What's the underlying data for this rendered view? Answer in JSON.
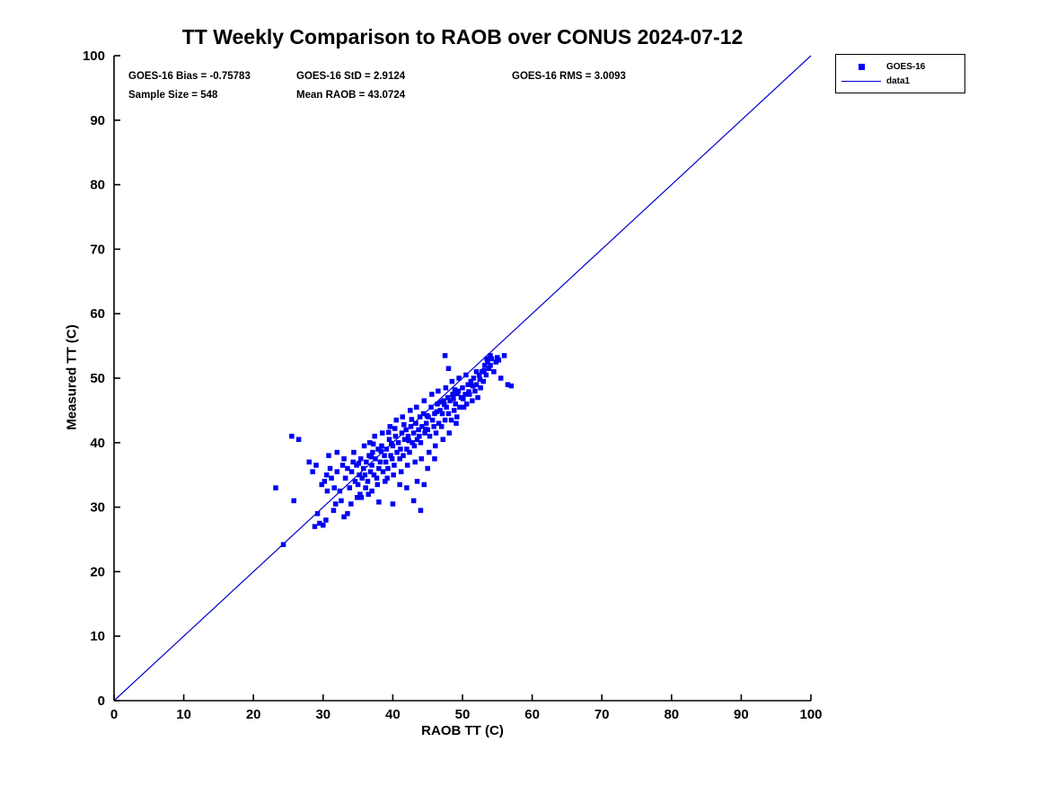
{
  "title": "TT Weekly Comparison to RAOB over CONUS 2024-07-12",
  "stats": {
    "bias": "GOES-16 Bias = -0.75783",
    "std": "GOES-16 StD = 2.9124",
    "rms": "GOES-16 RMS = 3.0093",
    "sample_size": "Sample Size = 548",
    "mean_raob": "Mean RAOB = 43.0724"
  },
  "legend": {
    "marker_item_label": "GOES-16",
    "line_item_label": "data1"
  },
  "colors": {
    "marker": "#0000f5",
    "reference_line": "#0000cc",
    "axis": "#000000",
    "text": "#000000",
    "background": "#ffffff"
  },
  "chart_data": {
    "type": "scatter",
    "title": "TT Weekly Comparison to RAOB over CONUS 2024-07-12",
    "xlabel": "RAOB TT (C)",
    "ylabel": "Measured TT (C)",
    "xlim": [
      0,
      100
    ],
    "ylim": [
      0,
      100
    ],
    "xticks": [
      0,
      10,
      20,
      30,
      40,
      50,
      60,
      70,
      80,
      90,
      100
    ],
    "yticks": [
      0,
      10,
      20,
      30,
      40,
      50,
      60,
      70,
      80,
      90,
      100
    ],
    "grid": false,
    "legend_position": "outside-top-right",
    "reference_line": {
      "name": "data1",
      "from": [
        0,
        0
      ],
      "to": [
        100,
        100
      ]
    },
    "annotations": [
      "GOES-16 Bias = -0.75783",
      "GOES-16 StD = 2.9124",
      "GOES-16 RMS = 3.0093",
      "Sample Size = 548",
      "Mean RAOB = 43.0724"
    ],
    "series": [
      {
        "name": "GOES-16",
        "marker": "square",
        "points": [
          [
            23.2,
            33.0
          ],
          [
            25.5,
            41.0
          ],
          [
            26.5,
            40.5
          ],
          [
            25.8,
            31.0
          ],
          [
            24.3,
            24.2
          ],
          [
            28.0,
            37.0
          ],
          [
            28.5,
            35.5
          ],
          [
            29.0,
            36.5
          ],
          [
            29.5,
            27.5
          ],
          [
            30.0,
            27.2
          ],
          [
            31.5,
            29.5
          ],
          [
            33.0,
            28.5
          ],
          [
            33.5,
            29.0
          ],
          [
            30.5,
            35.0
          ],
          [
            31.0,
            36.0
          ],
          [
            32.0,
            38.5
          ],
          [
            30.8,
            38.0
          ],
          [
            34.0,
            30.5
          ],
          [
            35.5,
            31.5
          ],
          [
            36.5,
            32.0
          ],
          [
            37.0,
            32.5
          ],
          [
            38.0,
            30.8
          ],
          [
            40.0,
            30.5
          ],
          [
            41.0,
            33.5
          ],
          [
            42.0,
            33.0
          ],
          [
            43.0,
            31.0
          ],
          [
            43.5,
            34.0
          ],
          [
            44.0,
            29.5
          ],
          [
            44.5,
            33.5
          ],
          [
            45.0,
            36.0
          ],
          [
            46.0,
            37.5
          ],
          [
            47.5,
            53.5
          ],
          [
            48.0,
            51.5
          ],
          [
            53.5,
            53.0
          ],
          [
            54.0,
            53.5
          ],
          [
            55.0,
            53.2
          ],
          [
            56.0,
            53.5
          ],
          [
            56.5,
            49.0
          ],
          [
            57.0,
            48.8
          ],
          [
            55.5,
            50.0
          ],
          [
            52.0,
            51.0
          ],
          [
            33.2,
            34.5
          ],
          [
            33.5,
            36.0
          ],
          [
            33.8,
            33.0
          ],
          [
            34.1,
            35.5
          ],
          [
            34.3,
            37.0
          ],
          [
            34.6,
            34.0
          ],
          [
            34.8,
            36.5
          ],
          [
            35.0,
            33.5
          ],
          [
            35.2,
            35.0
          ],
          [
            35.4,
            37.5
          ],
          [
            35.6,
            34.5
          ],
          [
            35.8,
            36.0
          ],
          [
            36.0,
            35.0
          ],
          [
            36.2,
            37.0
          ],
          [
            36.4,
            34.0
          ],
          [
            36.6,
            38.0
          ],
          [
            36.8,
            35.5
          ],
          [
            37.0,
            36.5
          ],
          [
            37.1,
            38.5
          ],
          [
            37.3,
            35.0
          ],
          [
            37.5,
            37.5
          ],
          [
            37.7,
            34.5
          ],
          [
            37.9,
            39.0
          ],
          [
            38.0,
            36.0
          ],
          [
            38.2,
            37.0
          ],
          [
            38.4,
            39.5
          ],
          [
            38.6,
            35.5
          ],
          [
            38.8,
            38.0
          ],
          [
            39.0,
            37.0
          ],
          [
            39.1,
            39.0
          ],
          [
            39.3,
            36.0
          ],
          [
            39.5,
            40.5
          ],
          [
            39.7,
            38.0
          ],
          [
            39.9,
            37.5
          ],
          [
            40.0,
            39.5
          ],
          [
            40.2,
            36.5
          ],
          [
            40.4,
            41.0
          ],
          [
            40.6,
            38.5
          ],
          [
            40.8,
            40.0
          ],
          [
            41.0,
            37.5
          ],
          [
            41.1,
            39.0
          ],
          [
            41.3,
            41.5
          ],
          [
            41.5,
            38.0
          ],
          [
            41.7,
            40.5
          ],
          [
            41.9,
            42.0
          ],
          [
            42.0,
            39.0
          ],
          [
            42.2,
            41.0
          ],
          [
            42.4,
            38.5
          ],
          [
            42.6,
            42.5
          ],
          [
            42.8,
            40.0
          ],
          [
            43.0,
            41.5
          ],
          [
            43.1,
            39.5
          ],
          [
            43.3,
            43.0
          ],
          [
            43.5,
            40.5
          ],
          [
            43.7,
            42.0
          ],
          [
            43.9,
            44.0
          ],
          [
            44.0,
            40.0
          ],
          [
            44.2,
            42.5
          ],
          [
            44.4,
            44.5
          ],
          [
            44.6,
            41.5
          ],
          [
            44.8,
            43.0
          ],
          [
            45.0,
            42.0
          ],
          [
            45.1,
            44.0
          ],
          [
            45.3,
            41.0
          ],
          [
            45.5,
            45.5
          ],
          [
            45.7,
            43.5
          ],
          [
            45.9,
            42.5
          ],
          [
            46.0,
            44.5
          ],
          [
            46.2,
            41.5
          ],
          [
            46.4,
            46.0
          ],
          [
            46.6,
            43.0
          ],
          [
            46.8,
            45.0
          ],
          [
            47.0,
            42.5
          ],
          [
            47.1,
            44.5
          ],
          [
            47.3,
            46.5
          ],
          [
            47.5,
            43.5
          ],
          [
            47.7,
            45.5
          ],
          [
            47.9,
            47.0
          ],
          [
            48.0,
            44.5
          ],
          [
            48.2,
            46.5
          ],
          [
            48.4,
            43.5
          ],
          [
            48.6,
            47.5
          ],
          [
            48.8,
            45.0
          ],
          [
            49.0,
            46.0
          ],
          [
            49.2,
            44.0
          ],
          [
            49.4,
            48.0
          ],
          [
            49.6,
            45.5
          ],
          [
            49.8,
            47.0
          ],
          [
            50.0,
            48.5
          ],
          [
            50.2,
            45.5
          ],
          [
            50.4,
            47.5
          ],
          [
            50.6,
            46.0
          ],
          [
            50.8,
            49.0
          ],
          [
            51.0,
            47.5
          ],
          [
            51.2,
            49.5
          ],
          [
            51.4,
            46.5
          ],
          [
            51.6,
            50.0
          ],
          [
            51.8,
            48.0
          ],
          [
            52.0,
            49.0
          ],
          [
            52.2,
            47.0
          ],
          [
            52.4,
            50.5
          ],
          [
            52.6,
            48.5
          ],
          [
            52.8,
            51.0
          ],
          [
            53.0,
            49.5
          ],
          [
            53.2,
            52.0
          ],
          [
            53.4,
            50.5
          ],
          [
            53.6,
            52.5
          ],
          [
            53.8,
            51.5
          ],
          [
            54.0,
            52.0
          ],
          [
            54.2,
            53.0
          ],
          [
            54.5,
            51.0
          ],
          [
            54.8,
            52.5
          ],
          [
            55.2,
            52.8
          ],
          [
            30.2,
            34.0
          ],
          [
            30.6,
            32.5
          ],
          [
            31.2,
            34.5
          ],
          [
            31.6,
            33.0
          ],
          [
            32.0,
            35.5
          ],
          [
            32.4,
            32.5
          ],
          [
            32.8,
            36.5
          ],
          [
            29.8,
            33.5
          ],
          [
            29.2,
            29.0
          ],
          [
            28.8,
            27.0
          ],
          [
            30.4,
            28.0
          ],
          [
            31.8,
            30.5
          ],
          [
            32.6,
            31.0
          ],
          [
            33.0,
            37.5
          ],
          [
            34.4,
            38.5
          ],
          [
            35.9,
            39.5
          ],
          [
            36.7,
            40.0
          ],
          [
            37.4,
            41.0
          ],
          [
            38.5,
            41.5
          ],
          [
            39.6,
            42.5
          ],
          [
            40.5,
            43.5
          ],
          [
            41.4,
            44.0
          ],
          [
            42.5,
            45.0
          ],
          [
            43.4,
            45.5
          ],
          [
            44.5,
            46.5
          ],
          [
            45.6,
            47.5
          ],
          [
            46.5,
            48.0
          ],
          [
            47.6,
            48.5
          ],
          [
            48.5,
            49.5
          ],
          [
            49.5,
            50.0
          ],
          [
            50.5,
            50.5
          ],
          [
            36.1,
            33.0
          ],
          [
            37.8,
            33.5
          ],
          [
            39.2,
            34.5
          ],
          [
            40.1,
            35.0
          ],
          [
            41.2,
            35.5
          ],
          [
            42.1,
            36.5
          ],
          [
            43.2,
            37.0
          ],
          [
            44.1,
            37.5
          ],
          [
            45.2,
            38.5
          ],
          [
            46.1,
            39.5
          ],
          [
            47.2,
            40.5
          ],
          [
            48.1,
            41.5
          ],
          [
            49.1,
            43.0
          ],
          [
            38.9,
            34.0
          ],
          [
            35.3,
            32.0
          ],
          [
            34.9,
            31.5
          ],
          [
            37.2,
            39.8
          ],
          [
            38.3,
            38.7
          ],
          [
            39.4,
            41.6
          ],
          [
            40.3,
            42.2
          ],
          [
            41.6,
            42.8
          ],
          [
            42.7,
            43.6
          ],
          [
            43.8,
            41.0
          ],
          [
            44.9,
            44.2
          ],
          [
            46.3,
            44.8
          ],
          [
            47.4,
            45.9
          ],
          [
            48.7,
            46.8
          ],
          [
            49.3,
            47.6
          ],
          [
            50.1,
            46.8
          ],
          [
            51.5,
            48.8
          ],
          [
            35.1,
            36.8
          ],
          [
            36.9,
            37.8
          ],
          [
            39.8,
            39.9
          ],
          [
            42.3,
            40.3
          ],
          [
            44.7,
            42.1
          ],
          [
            46.9,
            46.3
          ],
          [
            48.9,
            48.2
          ],
          [
            50.9,
            47.9
          ],
          [
            52.5,
            49.8
          ],
          [
            53.1,
            51.2
          ]
        ]
      }
    ]
  }
}
